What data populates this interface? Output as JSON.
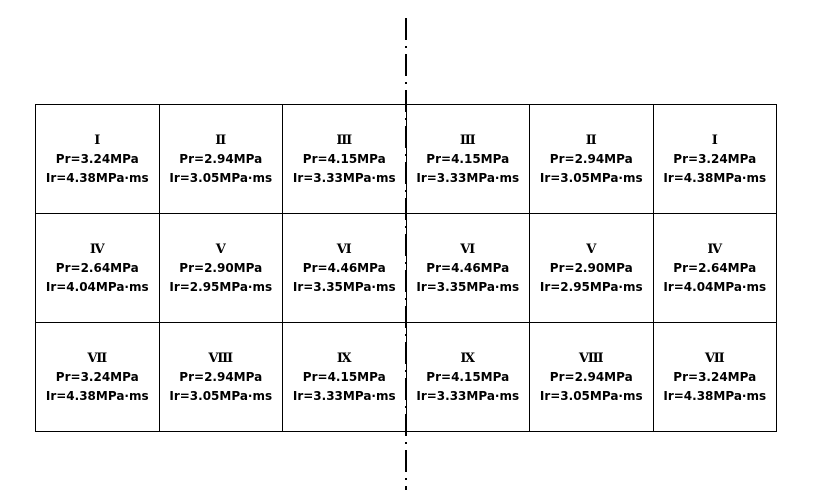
{
  "table": {
    "rows": [
      [
        {
          "numeral": "Ⅰ",
          "pr": "Pr=3.24MPa",
          "ir": "Ir=4.38MPa·ms"
        },
        {
          "numeral": "Ⅱ",
          "pr": "Pr=2.94MPa",
          "ir": "Ir=3.05MPa·ms"
        },
        {
          "numeral": "Ⅲ",
          "pr": "Pr=4.15MPa",
          "ir": "Ir=3.33MPa·ms"
        },
        {
          "numeral": "Ⅲ",
          "pr": "Pr=4.15MPa",
          "ir": "Ir=3.33MPa·ms"
        },
        {
          "numeral": "Ⅱ",
          "pr": "Pr=2.94MPa",
          "ir": "Ir=3.05MPa·ms"
        },
        {
          "numeral": "Ⅰ",
          "pr": "Pr=3.24MPa",
          "ir": "Ir=4.38MPa·ms"
        }
      ],
      [
        {
          "numeral": "Ⅳ",
          "pr": "Pr=2.64MPa",
          "ir": "Ir=4.04MPa·ms"
        },
        {
          "numeral": "Ⅴ",
          "pr": "Pr=2.90MPa",
          "ir": "Ir=2.95MPa·ms"
        },
        {
          "numeral": "Ⅵ",
          "pr": "Pr=4.46MPa",
          "ir": "Ir=3.35MPa·ms"
        },
        {
          "numeral": "Ⅵ",
          "pr": "Pr=4.46MPa",
          "ir": "Ir=3.35MPa·ms"
        },
        {
          "numeral": "Ⅴ",
          "pr": "Pr=2.90MPa",
          "ir": "Ir=2.95MPa·ms"
        },
        {
          "numeral": "Ⅳ",
          "pr": "Pr=2.64MPa",
          "ir": "Ir=4.04MPa·ms"
        }
      ],
      [
        {
          "numeral": "Ⅶ",
          "pr": "Pr=3.24MPa",
          "ir": "Ir=4.38MPa·ms"
        },
        {
          "numeral": "Ⅷ",
          "pr": "Pr=2.94MPa",
          "ir": "Ir=3.05MPa·ms"
        },
        {
          "numeral": "Ⅸ",
          "pr": "Pr=4.15MPa",
          "ir": "Ir=3.33MPa·ms"
        },
        {
          "numeral": "Ⅸ",
          "pr": "Pr=4.15MPa",
          "ir": "Ir=3.33MPa·ms"
        },
        {
          "numeral": "Ⅷ",
          "pr": "Pr=2.94MPa",
          "ir": "Ir=3.05MPa·ms"
        },
        {
          "numeral": "Ⅶ",
          "pr": "Pr=3.24MPa",
          "ir": "Ir=4.38MPa·ms"
        }
      ]
    ]
  }
}
